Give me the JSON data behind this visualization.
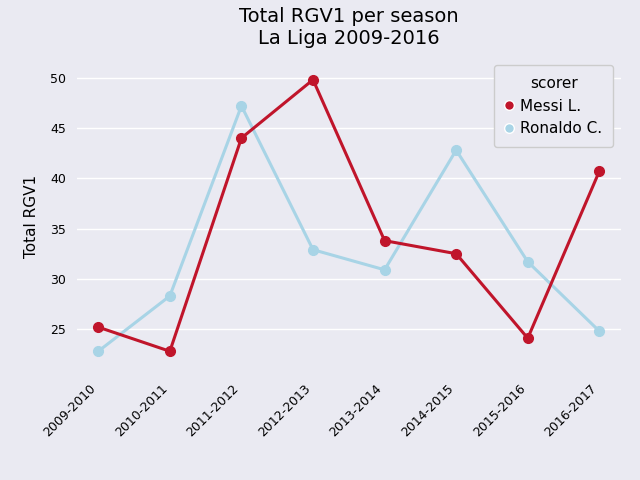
{
  "seasons": [
    "2009-2010",
    "2010-2011",
    "2011-2012",
    "2012-2013",
    "2013-2014",
    "2014-2015",
    "2015-2016",
    "2016-2017"
  ],
  "messi": [
    25.2,
    22.8,
    44.0,
    49.8,
    33.8,
    32.5,
    24.1,
    40.7
  ],
  "ronaldo": [
    22.8,
    28.3,
    47.2,
    32.9,
    30.9,
    42.8,
    31.7,
    24.8
  ],
  "messi_color": "#c0152b",
  "ronaldo_color": "#a8d4e6",
  "title_line1": "Total RGV1 per season",
  "title_line2": "La Liga 2009-2016",
  "ylabel": "Total RGV1",
  "legend_title": "scorer",
  "legend_labels": [
    "Messi L.",
    "Ronaldo C."
  ],
  "ylim": [
    20.5,
    52
  ],
  "yticks": [
    25,
    30,
    35,
    40,
    45,
    50
  ],
  "background_color": "#eaeaf2",
  "grid_color": "#ffffff",
  "title_fontsize": 14,
  "label_fontsize": 11,
  "tick_fontsize": 9,
  "marker_size": 7,
  "line_width": 2.2
}
